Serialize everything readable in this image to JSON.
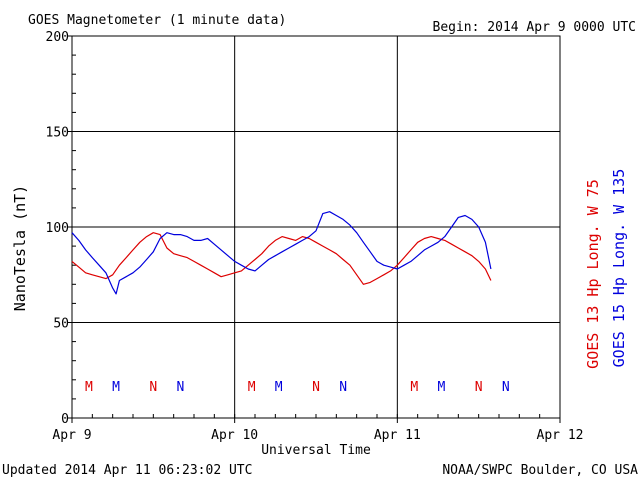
{
  "chart_data": {
    "type": "line",
    "title": "GOES Magnetometer (1 minute data)",
    "begin": "Begin:  2014 Apr 9 0000 UTC",
    "xlabel": "Universal Time",
    "ylabel": "NanoTesla (nT)",
    "x_tick_labels": [
      "Apr 9",
      "Apr 10",
      "Apr 11",
      "Apr 12"
    ],
    "y_tick_labels": [
      "0",
      "50",
      "100",
      "150",
      "200"
    ],
    "ylim": [
      0,
      200
    ],
    "xlim_hours": [
      0,
      72
    ],
    "grid": true,
    "footer_left": "Updated 2014 Apr 11 06:23:02 UTC",
    "footer_right": "NOAA/SWPC Boulder, CO USA",
    "series": [
      {
        "name": "GOES 13 Hp  Long. W 75",
        "color": "#dd0000",
        "x": [
          0,
          1,
          2,
          3,
          4,
          5,
          6,
          7,
          8,
          9,
          10,
          11,
          12,
          13,
          14,
          15,
          16,
          17,
          18,
          19,
          20,
          21,
          22,
          23,
          24,
          25,
          26,
          27,
          28,
          29,
          30,
          31,
          32,
          33,
          34,
          35,
          36,
          37,
          38,
          39,
          40,
          41,
          42,
          43,
          44,
          45,
          46,
          47,
          48,
          49,
          50,
          51,
          52,
          53,
          54,
          55,
          56,
          57,
          58,
          59,
          60,
          61,
          61.8
        ],
        "values": [
          82,
          79,
          76,
          75,
          74,
          73,
          75,
          80,
          84,
          88,
          92,
          95,
          97,
          96,
          89,
          86,
          85,
          84,
          82,
          80,
          78,
          76,
          74,
          75,
          76,
          77,
          80,
          83,
          86,
          90,
          93,
          95,
          94,
          93,
          95,
          94,
          92,
          90,
          88,
          86,
          83,
          80,
          75,
          70,
          71,
          73,
          75,
          77,
          80,
          84,
          88,
          92,
          94,
          95,
          94,
          93,
          91,
          89,
          87,
          85,
          82,
          78,
          72
        ],
        "marks": [
          {
            "label": "M",
            "x": 2.5
          },
          {
            "label": "N",
            "x": 12.0
          },
          {
            "label": "M",
            "x": 26.5
          },
          {
            "label": "N",
            "x": 36.0
          },
          {
            "label": "M",
            "x": 50.5
          },
          {
            "label": "N",
            "x": 60.0
          }
        ]
      },
      {
        "name": "GOES 15 Hp  Long. W 135",
        "color": "#0000dd",
        "x": [
          0,
          1,
          2,
          3,
          4,
          5,
          6,
          6.5,
          7,
          8,
          9,
          10,
          11,
          12,
          13,
          14,
          15,
          16,
          17,
          18,
          19,
          20,
          21,
          22,
          23,
          24,
          25,
          26,
          27,
          28,
          29,
          30,
          31,
          32,
          33,
          34,
          35,
          36,
          37,
          38,
          39,
          40,
          41,
          42,
          43,
          44,
          45,
          46,
          47,
          48,
          49,
          50,
          51,
          52,
          53,
          54,
          55,
          56,
          57,
          58,
          59,
          60,
          61,
          61.8
        ],
        "values": [
          97,
          93,
          88,
          84,
          80,
          76,
          68,
          65,
          72,
          74,
          76,
          79,
          83,
          87,
          94,
          97,
          96,
          96,
          95,
          93,
          93,
          94,
          91,
          88,
          85,
          82,
          80,
          78,
          77,
          80,
          83,
          85,
          87,
          89,
          91,
          93,
          95,
          98,
          107,
          108,
          106,
          104,
          101,
          97,
          92,
          87,
          82,
          80,
          79,
          78,
          80,
          82,
          85,
          88,
          90,
          92,
          95,
          100,
          105,
          106,
          104,
          100,
          92,
          78
        ],
        "marks": [
          {
            "label": "M",
            "x": 6.5
          },
          {
            "label": "N",
            "x": 16.0
          },
          {
            "label": "M",
            "x": 30.5
          },
          {
            "label": "N",
            "x": 40.0
          },
          {
            "label": "M",
            "x": 54.5
          },
          {
            "label": "N",
            "x": 64.0
          }
        ]
      }
    ]
  }
}
